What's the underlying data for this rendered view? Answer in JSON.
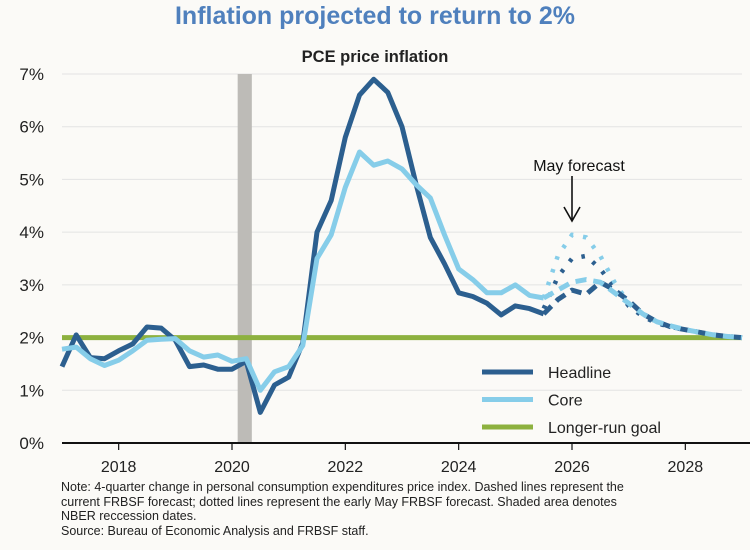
{
  "chart_data": {
    "type": "line",
    "title": "Inflation projected to return to 2%",
    "subtitle": "PCE price inflation",
    "xlabel": "",
    "ylabel": "",
    "xlim": [
      2017.0,
      2029.0
    ],
    "ylim": [
      0,
      7
    ],
    "yticks": [
      0,
      1,
      2,
      3,
      4,
      5,
      6,
      7
    ],
    "ytick_labels": [
      "0%",
      "1%",
      "2%",
      "3%",
      "4%",
      "5%",
      "6%",
      "7%"
    ],
    "xticks": [
      2018,
      2020,
      2022,
      2024,
      2026,
      2028
    ],
    "xtick_labels": [
      "2018",
      "2020",
      "2022",
      "2024",
      "2026",
      "2028"
    ],
    "grid": "horizontal",
    "recession_shading": [
      2020.1,
      2020.35
    ],
    "longer_run_goal": 2.0,
    "annotation": {
      "text": "May forecast",
      "x": 2026.0,
      "arrow_to_y": 4.1
    },
    "series": [
      {
        "name": "Headline",
        "color": "#2c5f8f",
        "style": "solid",
        "x": [
          2017.0,
          2017.25,
          2017.5,
          2017.75,
          2018.0,
          2018.25,
          2018.5,
          2018.75,
          2019.0,
          2019.25,
          2019.5,
          2019.75,
          2020.0,
          2020.25,
          2020.5,
          2020.75,
          2021.0,
          2021.25,
          2021.5,
          2021.75,
          2022.0,
          2022.25,
          2022.5,
          2022.75,
          2023.0,
          2023.25,
          2023.5,
          2023.75,
          2024.0,
          2024.25,
          2024.5,
          2024.75,
          2025.0,
          2025.25,
          2025.5
        ],
        "values": [
          1.45,
          2.05,
          1.62,
          1.6,
          1.75,
          1.88,
          2.2,
          2.18,
          1.95,
          1.45,
          1.48,
          1.4,
          1.4,
          1.55,
          0.58,
          1.1,
          1.25,
          1.9,
          4.0,
          4.6,
          5.8,
          6.6,
          6.9,
          6.65,
          6.0,
          4.9,
          3.9,
          3.4,
          2.85,
          2.78,
          2.65,
          2.43,
          2.6,
          2.55,
          2.45
        ]
      },
      {
        "name": "Core",
        "color": "#86cde9",
        "style": "solid",
        "x": [
          2017.0,
          2017.25,
          2017.5,
          2017.75,
          2018.0,
          2018.25,
          2018.5,
          2018.75,
          2019.0,
          2019.25,
          2019.5,
          2019.75,
          2020.0,
          2020.25,
          2020.5,
          2020.75,
          2021.0,
          2021.25,
          2021.5,
          2021.75,
          2022.0,
          2022.25,
          2022.5,
          2022.75,
          2023.0,
          2023.25,
          2023.5,
          2023.75,
          2024.0,
          2024.25,
          2024.5,
          2024.75,
          2025.0,
          2025.25,
          2025.5
        ],
        "values": [
          1.78,
          1.82,
          1.6,
          1.47,
          1.57,
          1.75,
          1.95,
          1.97,
          1.98,
          1.75,
          1.63,
          1.67,
          1.55,
          1.6,
          1.0,
          1.35,
          1.45,
          1.85,
          3.5,
          3.95,
          4.85,
          5.52,
          5.27,
          5.35,
          5.2,
          4.9,
          4.65,
          3.95,
          3.3,
          3.1,
          2.85,
          2.85,
          3.0,
          2.8,
          2.75
        ]
      },
      {
        "name": "Headline (current forecast)",
        "color": "#2c5f8f",
        "style": "dashed",
        "x": [
          2025.5,
          2025.75,
          2026.0,
          2026.25,
          2026.5,
          2026.75,
          2027.0,
          2027.25,
          2027.5,
          2027.75,
          2028.0,
          2028.25,
          2028.5,
          2028.75,
          2029.0
        ],
        "values": [
          2.45,
          2.72,
          2.9,
          2.82,
          3.05,
          2.9,
          2.7,
          2.45,
          2.3,
          2.2,
          2.15,
          2.1,
          2.05,
          2.02,
          2.0
        ]
      },
      {
        "name": "Core (current forecast)",
        "color": "#86cde9",
        "style": "dashed",
        "x": [
          2025.5,
          2025.75,
          2026.0,
          2026.25,
          2026.5,
          2026.75,
          2027.0,
          2027.25,
          2027.5,
          2027.75,
          2028.0,
          2028.25,
          2028.5,
          2028.75,
          2029.0
        ],
        "values": [
          2.75,
          2.9,
          3.05,
          3.1,
          3.05,
          2.85,
          2.65,
          2.45,
          2.3,
          2.22,
          2.15,
          2.1,
          2.05,
          2.02,
          2.0
        ]
      },
      {
        "name": "Headline (May forecast)",
        "color": "#2c5f8f",
        "style": "dotted",
        "x": [
          2025.5,
          2025.75,
          2026.0,
          2026.25,
          2026.5,
          2026.75,
          2027.0,
          2027.25,
          2027.5,
          2027.75,
          2028.0,
          2028.25,
          2028.5,
          2028.75,
          2029.0
        ],
        "values": [
          2.55,
          3.15,
          3.5,
          3.55,
          3.3,
          2.95,
          2.6,
          2.4,
          2.27,
          2.2,
          2.15,
          2.1,
          2.05,
          2.02,
          2.0
        ]
      },
      {
        "name": "Core (May forecast)",
        "color": "#86cde9",
        "style": "dotted",
        "x": [
          2025.5,
          2025.75,
          2026.0,
          2026.25,
          2026.5,
          2026.75,
          2027.0,
          2027.25,
          2027.5,
          2027.75,
          2028.0,
          2028.25,
          2028.5,
          2028.75,
          2029.0
        ],
        "values": [
          2.75,
          3.55,
          3.95,
          3.9,
          3.55,
          3.05,
          2.65,
          2.45,
          2.3,
          2.2,
          2.15,
          2.1,
          2.05,
          2.02,
          2.0
        ]
      }
    ],
    "legend": {
      "position": "bottom-right",
      "entries": [
        {
          "label": "Headline",
          "color": "#2c5f8f"
        },
        {
          "label": "Core",
          "color": "#86cde9"
        },
        {
          "label": "Longer-run goal",
          "color": "#8db13f"
        }
      ]
    }
  },
  "notes": {
    "line1": "Note: 4-quarter change in personal consumption expenditures price index. Dashed lines represent the",
    "line2": "current FRBSF forecast; dotted lines represent the early May FRBSF forecast. Shaded area denotes",
    "line3": "NBER reccession dates.",
    "source": "Source: Bureau of Economic Analysis and FRBSF staff."
  },
  "colors": {
    "title": "#4f80bd",
    "goal": "#8db13f",
    "recession": "#bdbbb7",
    "grid": "#e3e3e3"
  }
}
